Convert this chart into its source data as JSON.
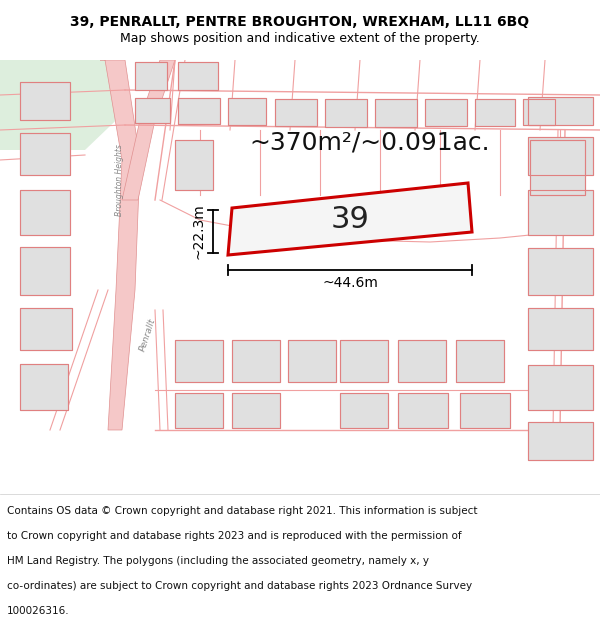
{
  "title_line1": "39, PENRALLT, PENTRE BROUGHTON, WREXHAM, LL11 6BQ",
  "title_line2": "Map shows position and indicative extent of the property.",
  "area_text": "~370m²/~0.091ac.",
  "width_label": "~44.6m",
  "height_label": "~22.3m",
  "property_number": "39",
  "footer_lines": [
    "Contains OS data © Crown copyright and database right 2021. This information is subject",
    "to Crown copyright and database rights 2023 and is reproduced with the permission of",
    "HM Land Registry. The polygons (including the associated geometry, namely x, y",
    "co-ordinates) are subject to Crown copyright and database rights 2023 Ordnance Survey",
    "100026316."
  ],
  "bg_color": "#ffffff",
  "map_bg": "#f8f8f8",
  "street_color": "#f5c8c8",
  "building_fill": "#e0e0e0",
  "building_ec": "#d0b0b0",
  "green_fill": "#ddeedd",
  "property_fill": "#f5f5f5",
  "property_edge": "#cc0000",
  "dim_color": "#000000",
  "title_fontsize": 10,
  "subtitle_fontsize": 9,
  "area_fontsize": 18,
  "label_fontsize": 10,
  "number_fontsize": 22,
  "footer_fontsize": 7.5,
  "street_label_color": "#888888",
  "street_line_color": "#f0a0a0"
}
